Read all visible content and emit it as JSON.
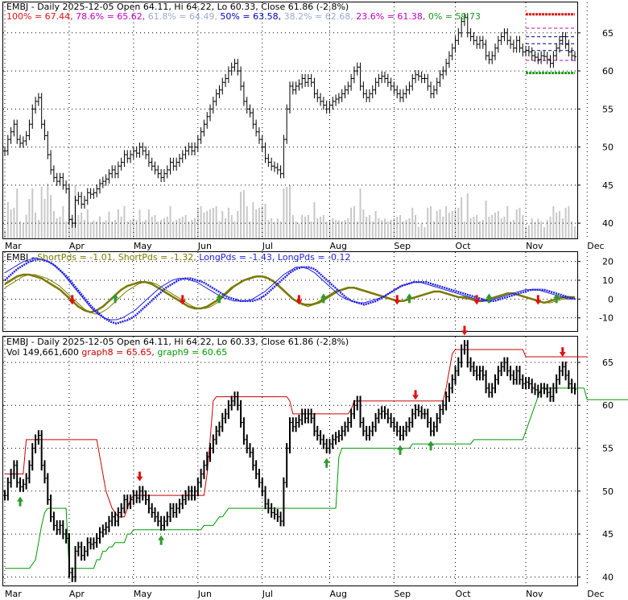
{
  "colors": {
    "up_arrow": "#2e9a2e",
    "down_arrow": "#e01010",
    "fib_red": "#e01010",
    "fib_green": "#1a9a1a",
    "fib_magenta": "#c000c0",
    "fib_navy": "#000080",
    "short_pd": "#7a7a00",
    "long_pd": "#2020e0",
    "graph8": "#cc0000",
    "graph9": "#009900",
    "volume": "#c8c8c8"
  },
  "panel1": {
    "title": "EMBJ - Daily 2025-12-05 Open 64.11, Hi 64.22, Lo 60.33, Close 61.86 (-2.8%)",
    "legend": [
      {
        "text": "100% = 67.44,",
        "color": "#e01010"
      },
      {
        "text": "78.6% = 65.62,",
        "color": "#c000c0"
      },
      {
        "text": "61.8% = 64.49,",
        "color": "#9aaad0"
      },
      {
        "text": "50% = 63.58,",
        "color": "#0000c0"
      },
      {
        "text": "38.2% = 62.68,",
        "color": "#9aaad0"
      },
      {
        "text": "23.6% = 61.38,",
        "color": "#c000c0"
      },
      {
        "text": "0% = 59.73",
        "color": "#1a9a1a"
      }
    ],
    "y_ticks": [
      40,
      45,
      50,
      55,
      60,
      65
    ],
    "ylim": [
      38,
      69
    ]
  },
  "panel2": {
    "legend": [
      {
        "text": "EMBJ -",
        "color": "#000000"
      },
      {
        "text": "ShortPds = -1.01,",
        "color": "#7a7a00"
      },
      {
        "text": "ShortPds = -1.32,",
        "color": "#7a7a00"
      },
      {
        "text": "LongPds = -1.43,",
        "color": "#2020e0"
      },
      {
        "text": "LongPds = -0.12",
        "color": "#2020e0"
      }
    ],
    "y_ticks": [
      -10,
      0,
      10,
      20
    ],
    "ylim": [
      -17,
      25
    ]
  },
  "panel3": {
    "title": "EMBJ - Daily 2025-12-05 Open 64.11, Hi 64.22, Lo 60.33, Close 61.86 (-2.8%)",
    "legend": [
      {
        "text": "Vol 149,661,600",
        "color": "#000000"
      },
      {
        "text": "graph8 = 65.65,",
        "color": "#cc0000"
      },
      {
        "text": "graph9 = 60.65",
        "color": "#009900"
      }
    ],
    "y_ticks": [
      40,
      45,
      50,
      55,
      60,
      65
    ],
    "ylim": [
      39,
      68
    ]
  },
  "months": [
    {
      "label": "Mar",
      "day": 0
    },
    {
      "label": "Apr",
      "day": 21
    },
    {
      "label": "May",
      "day": 42
    },
    {
      "label": "Jun",
      "day": 63
    },
    {
      "label": "Jul",
      "day": 84
    },
    {
      "label": "Aug",
      "day": 106
    },
    {
      "label": "Sep",
      "day": 127
    },
    {
      "label": "Oct",
      "day": 147
    },
    {
      "label": "Nov",
      "day": 170
    },
    {
      "label": "Dec",
      "day": 190
    }
  ],
  "chart_data": {
    "type": "line",
    "title": "EMBJ - Daily 2025-12-05 Open 64.11, Hi 64.22, Lo 60.33, Close 61.86 (-2.8%)",
    "price_close": [
      49.5,
      51,
      52,
      53,
      51,
      50.5,
      50.8,
      51.5,
      53,
      55,
      56,
      56.5,
      53,
      51.5,
      49,
      47,
      46,
      45.5,
      46,
      45,
      44.5,
      40.5,
      40,
      43,
      43.5,
      42.5,
      43,
      44,
      43.8,
      44,
      44.5,
      45.2,
      45.5,
      45.8,
      46.5,
      47,
      46.5,
      47.5,
      48,
      49,
      48.5,
      49,
      49.5,
      49.2,
      50,
      49.5,
      49,
      48,
      47.5,
      47,
      46.5,
      46,
      46.5,
      47,
      48,
      47.5,
      48,
      48.5,
      49,
      49.5,
      50,
      49.5,
      50,
      51,
      52,
      53,
      54,
      55,
      56,
      57,
      57.5,
      58.5,
      59,
      60,
      60.5,
      61,
      60,
      58,
      56,
      55,
      54.5,
      53,
      52,
      51,
      50,
      48.5,
      48,
      47.5,
      47.3,
      47,
      46.5,
      51,
      55,
      58,
      57.5,
      58,
      58.3,
      59,
      58.5,
      59,
      58.5,
      57,
      56.5,
      56,
      55.5,
      55,
      55.5,
      56,
      56.3,
      56.5,
      57,
      57.5,
      58,
      59,
      60,
      60.5,
      58,
      57,
      56.5,
      57,
      57.5,
      58.5,
      59,
      59.3,
      59,
      58.5,
      58,
      57.5,
      57,
      56.5,
      57,
      57.5,
      58,
      59,
      59.5,
      59.3,
      59,
      59,
      58,
      57,
      57.5,
      58.5,
      59.5,
      60,
      61,
      62,
      63,
      64,
      65,
      66.5,
      67,
      65,
      64.5,
      64,
      63.5,
      64,
      63.5,
      62,
      61.5,
      62,
      63,
      64,
      64.5,
      65,
      64,
      63.5,
      63,
      64,
      63,
      62.5,
      62.7,
      62.5,
      62,
      61.8,
      61.5,
      62,
      61.9,
      61.5,
      61,
      62,
      63,
      64,
      64.5,
      63.5,
      62.5,
      62,
      61.86
    ],
    "fib_levels": [
      {
        "name": "100%",
        "value": 67.44
      },
      {
        "name": "78.6%",
        "value": 65.62
      },
      {
        "name": "61.8%",
        "value": 64.49
      },
      {
        "name": "50%",
        "value": 63.58
      },
      {
        "name": "38.2%",
        "value": 62.68
      },
      {
        "name": "23.6%",
        "value": 61.38
      },
      {
        "name": "0%",
        "value": 59.73
      }
    ],
    "osc_series": [
      {
        "values": [
          8,
          10,
          12,
          13,
          13,
          12,
          11,
          9,
          7,
          5,
          2,
          -1,
          -4,
          -6,
          -7,
          -6,
          -4,
          -1,
          2,
          5,
          7,
          8,
          9,
          9,
          8,
          6,
          4,
          2,
          0,
          -2,
          -4,
          -5,
          -5,
          -4,
          -2,
          0,
          3,
          6,
          8,
          10,
          11,
          12,
          12,
          11,
          9,
          6,
          3,
          0,
          -2,
          -3,
          -3,
          -2,
          0,
          2,
          4,
          5,
          6,
          6,
          5,
          4,
          3,
          2,
          1,
          0,
          -1,
          -1,
          0,
          1,
          2,
          3,
          4,
          4,
          3,
          2,
          1,
          1,
          0,
          -1,
          -1,
          0,
          1,
          2,
          3,
          3,
          2,
          1,
          0,
          -1,
          -2,
          -1,
          0,
          1,
          1,
          1
        ]
      },
      {
        "values": [
          6,
          8,
          10,
          12,
          13,
          13,
          12,
          11,
          9,
          7,
          4,
          1,
          -2,
          -5,
          -7,
          -8,
          -7,
          -5,
          -2,
          1,
          4,
          6,
          8,
          9,
          9,
          8,
          6,
          4,
          2,
          0,
          -2,
          -4,
          -5,
          -5,
          -4,
          -2,
          1,
          4,
          7,
          9,
          11,
          12,
          12,
          12,
          10,
          8,
          5,
          2,
          -1,
          -3,
          -4,
          -3,
          -2,
          0,
          2,
          4,
          5,
          6,
          6,
          5,
          4,
          3,
          2,
          1,
          0,
          -1,
          -1,
          0,
          1,
          2,
          3,
          4,
          4,
          3,
          2,
          1,
          0,
          0,
          -1,
          -1,
          0,
          1,
          2,
          3,
          3,
          2,
          1,
          0,
          -1,
          -2,
          -2,
          -1,
          0,
          0,
          1
        ]
      },
      {
        "values": [
          14,
          16,
          18,
          20,
          21,
          22,
          21,
          20,
          18,
          15,
          11,
          7,
          3,
          -1,
          -5,
          -8,
          -10,
          -11,
          -11,
          -10,
          -8,
          -6,
          -3,
          0,
          3,
          6,
          8,
          10,
          11,
          11,
          10,
          9,
          7,
          5,
          3,
          1,
          0,
          -1,
          -1,
          -1,
          0,
          2,
          4,
          7,
          10,
          13,
          15,
          17,
          17,
          16,
          14,
          11,
          8,
          5,
          2,
          0,
          -1,
          -2,
          -2,
          -1,
          0,
          1,
          3,
          5,
          7,
          8,
          9,
          9,
          8,
          7,
          6,
          5,
          4,
          3,
          2,
          1,
          0,
          -1,
          -1,
          0,
          1,
          2,
          3,
          4,
          5,
          5,
          5,
          4,
          3,
          2,
          1,
          0,
          0
        ]
      },
      {
        "values": [
          10,
          13,
          16,
          18,
          20,
          21,
          21,
          20,
          18,
          15,
          12,
          8,
          4,
          0,
          -4,
          -7,
          -10,
          -12,
          -13,
          -12,
          -11,
          -9,
          -6,
          -3,
          0,
          3,
          6,
          8,
          10,
          11,
          11,
          10,
          9,
          7,
          5,
          3,
          1,
          0,
          -1,
          -1,
          -1,
          0,
          2,
          5,
          8,
          11,
          14,
          16,
          17,
          17,
          16,
          13,
          10,
          7,
          4,
          1,
          -1,
          -2,
          -3,
          -2,
          -1,
          1,
          3,
          5,
          7,
          8,
          9,
          9,
          9,
          8,
          7,
          6,
          5,
          4,
          3,
          2,
          1,
          0,
          -1,
          -1,
          0,
          1,
          2,
          3,
          4,
          5,
          5,
          5,
          4,
          3,
          2,
          1,
          0
        ]
      }
    ],
    "graph8": [
      52,
      52,
      52,
      52,
      52,
      52,
      52,
      56,
      56,
      56,
      56,
      56,
      56,
      56,
      56,
      56,
      56,
      56,
      56,
      56,
      56,
      56,
      56,
      56,
      56,
      56,
      56,
      56,
      56,
      56,
      56,
      54,
      52,
      50,
      49,
      48,
      47.5,
      47,
      47,
      47,
      48,
      49,
      49.5,
      49.5,
      49.5,
      49.5,
      49.5,
      49.5,
      49.5,
      49.5,
      49.5,
      49.5,
      49.5,
      49.5,
      49.5,
      49.5,
      49.5,
      49.5,
      49.5,
      49.5,
      49.5,
      49.5,
      49.5,
      49.5,
      49.5,
      49.5,
      52,
      56,
      60.5,
      61,
      61,
      61,
      61,
      61,
      61,
      61,
      61,
      61,
      61,
      61,
      61,
      61,
      61,
      61,
      61,
      61,
      61,
      61,
      61,
      61,
      61,
      61,
      61,
      60.5,
      59,
      59,
      59,
      59,
      59,
      59,
      59,
      59,
      59,
      59,
      59,
      59,
      59,
      59,
      59,
      59,
      59,
      59,
      59,
      59.5,
      60.5,
      60.5,
      60.5,
      60.5,
      60.5,
      60.5,
      60.5,
      60.5,
      60.5,
      60.5,
      60.5,
      60.5,
      60.5,
      60.5,
      60.5,
      60.5,
      60.5,
      60.5,
      60.5,
      60.5,
      60.5,
      60.5,
      60.5,
      60.5,
      60.5,
      60.5,
      60.5,
      60.5,
      60.5,
      60.5,
      62,
      64,
      66,
      66.5,
      66.5,
      66.5,
      66.5,
      66.5,
      66.5,
      66.5,
      66.5,
      66.5,
      66.5,
      66.5,
      66.5,
      66.5,
      66.5,
      66.5,
      66.5,
      66.5,
      66.5,
      66.5,
      66.5,
      66.5,
      66.5,
      66.5,
      65.65,
      65.65,
      65.65,
      65.65,
      65.65,
      65.65,
      65.65,
      65.65,
      65.65,
      65.65,
      65.65,
      65.65,
      65.65,
      65.65,
      65.65,
      65.65,
      65.65,
      65.65,
      65.65,
      65.65,
      65.65
    ],
    "graph9": [
      41,
      41,
      41,
      41,
      41,
      41,
      41,
      41,
      41,
      41.5,
      42,
      44,
      46,
      47.5,
      48,
      48,
      48,
      48,
      48,
      48,
      48,
      41,
      41,
      41,
      41,
      41,
      41,
      41,
      41,
      41,
      42,
      42,
      43,
      43,
      43.5,
      43.5,
      44,
      44,
      44,
      44,
      45,
      45,
      45.5,
      45.5,
      45.5,
      45.5,
      45.5,
      45.5,
      45.5,
      45.5,
      45.5,
      45.5,
      45.5,
      45.5,
      45.5,
      45.5,
      45.5,
      45.5,
      45.5,
      45.5,
      45.5,
      45.5,
      45.5,
      45.5,
      45.5,
      46,
      46,
      46,
      46,
      46.5,
      47,
      47,
      47.5,
      48,
      48,
      48,
      48,
      48,
      48,
      48,
      48,
      48,
      48,
      48,
      48,
      48,
      48,
      48,
      48,
      48,
      48,
      48,
      48,
      48,
      48,
      48,
      48,
      48,
      48,
      48,
      48,
      48,
      48,
      48,
      48,
      48,
      48,
      48,
      48,
      54,
      55,
      55,
      55,
      55,
      55,
      55,
      55,
      55,
      55,
      55,
      55,
      55,
      55,
      55,
      55,
      55,
      55,
      55,
      55,
      55,
      55,
      55,
      55,
      55.5,
      55.5,
      55.5,
      55.5,
      55.5,
      55.5,
      55.5,
      55.5,
      55.5,
      55.5,
      55.5,
      55.5,
      55.5,
      55.5,
      55.5,
      55.5,
      55.5,
      55.5,
      55.5,
      55.5,
      56,
      56,
      56,
      56,
      56,
      56,
      56,
      56,
      56,
      56,
      56,
      56,
      56,
      56,
      56,
      56,
      56,
      57,
      58,
      59,
      60,
      61,
      62,
      62,
      62,
      62,
      62,
      62,
      62,
      62,
      62,
      62,
      62,
      62,
      62,
      62,
      62,
      60.65,
      60.65,
      60.65,
      60.65,
      60.65,
      60.65,
      60.65,
      60.65,
      60.65,
      60.65,
      60.65,
      60.65,
      60.65,
      60.65,
      60.65,
      60.65,
      60.65,
      60.65
    ]
  }
}
